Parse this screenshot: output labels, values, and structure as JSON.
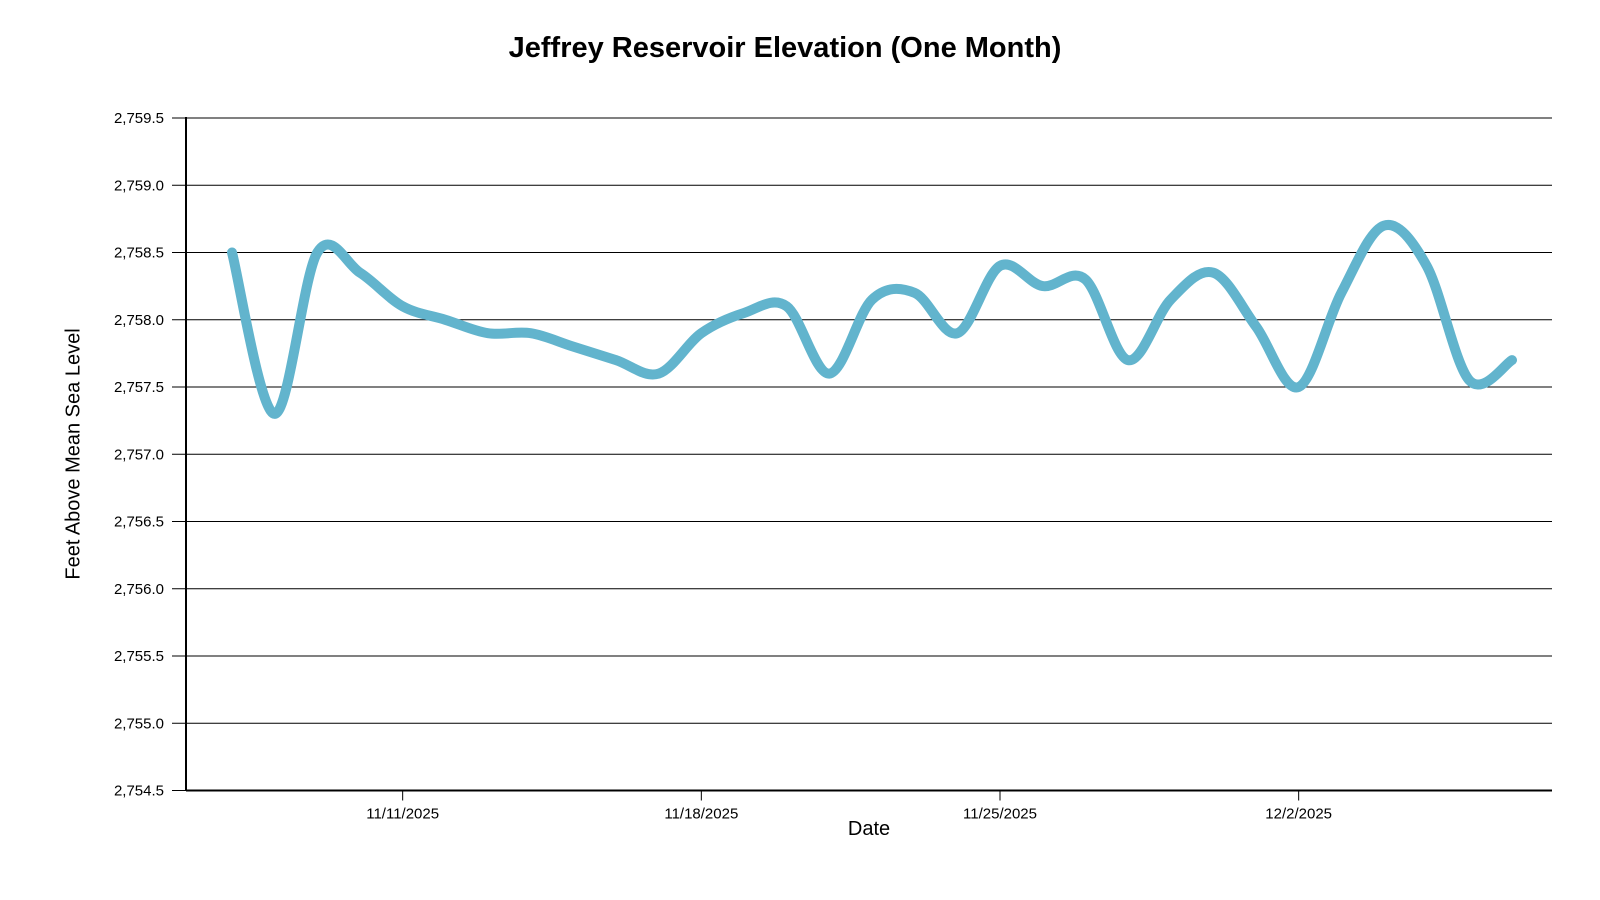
{
  "title": "Jeffrey Reservoir Elevation (One Month)",
  "chart_data": {
    "type": "line",
    "title": "Jeffrey Reservoir Elevation (One Month)",
    "xlabel": "Date",
    "ylabel": "Feet Above Mean Sea Level",
    "ylim": [
      2754.5,
      2759.5
    ],
    "y_tick_step": 0.5,
    "y_tick_labels": [
      "2,759.5",
      "2,759.0",
      "2,758.5",
      "2,758.0",
      "2,757.5",
      "2,757.0",
      "2,756.5",
      "2,756.0",
      "2,755.5",
      "2,755.0",
      "2,754.5"
    ],
    "x_tick_labels": [
      "11/11/2025",
      "11/18/2025",
      "11/25/2025",
      "12/2/2025"
    ],
    "x_tick_indices": [
      4,
      11,
      18,
      25
    ],
    "grid": "horizontal",
    "legend": "none",
    "line_color": "#62b4cd",
    "axis_color": "#000000",
    "series": [
      {
        "name": "Reservoir Elevation",
        "x": [
          "11/7/2025",
          "11/8/2025",
          "11/9/2025",
          "11/10/2025",
          "11/11/2025",
          "11/12/2025",
          "11/13/2025",
          "11/14/2025",
          "11/15/2025",
          "11/16/2025",
          "11/17/2025",
          "11/18/2025",
          "11/19/2025",
          "11/20/2025",
          "11/21/2025",
          "11/22/2025",
          "11/23/2025",
          "11/24/2025",
          "11/25/2025",
          "11/26/2025",
          "11/27/2025",
          "11/28/2025",
          "11/29/2025",
          "11/30/2025",
          "12/1/2025",
          "12/2/2025",
          "12/3/2025",
          "12/4/2025",
          "12/5/2025",
          "12/6/2025",
          "12/7/2025"
        ],
        "values": [
          2758.5,
          2757.3,
          2758.5,
          2758.35,
          2758.1,
          2758.0,
          2757.9,
          2757.9,
          2757.8,
          2757.7,
          2757.6,
          2757.9,
          2758.05,
          2758.1,
          2757.6,
          2758.15,
          2758.2,
          2757.9,
          2758.4,
          2758.25,
          2758.3,
          2757.7,
          2758.15,
          2758.35,
          2757.95,
          2757.5,
          2758.2,
          2758.7,
          2758.4,
          2757.55,
          2757.7
        ]
      }
    ]
  }
}
